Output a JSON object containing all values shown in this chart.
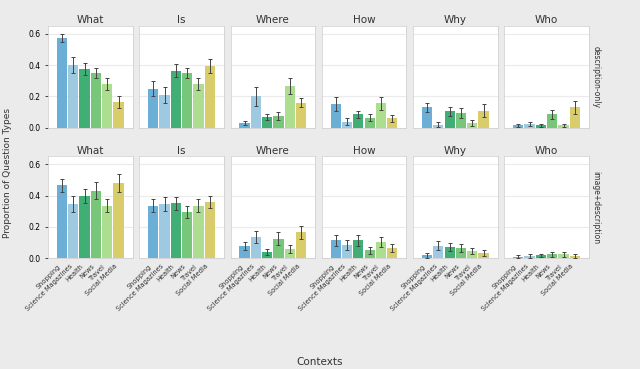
{
  "contexts": [
    "Shopping",
    "Science Magazines",
    "Health",
    "News",
    "Travel",
    "Social Media"
  ],
  "question_types": [
    "What",
    "Is",
    "Where",
    "How",
    "Why",
    "Who"
  ],
  "row_labels": [
    "description-only",
    "image+description"
  ],
  "colors": [
    "#6BAED6",
    "#9ECAE1",
    "#41AE76",
    "#78C679",
    "#ADDD8E",
    "#D9CC6A"
  ],
  "description_only": {
    "What": {
      "values": [
        0.57,
        0.4,
        0.375,
        0.35,
        0.28,
        0.165
      ],
      "errors": [
        0.025,
        0.05,
        0.04,
        0.03,
        0.04,
        0.04
      ]
    },
    "Is": {
      "values": [
        0.25,
        0.21,
        0.365,
        0.35,
        0.28,
        0.395
      ],
      "errors": [
        0.05,
        0.05,
        0.04,
        0.03,
        0.04,
        0.045
      ]
    },
    "Where": {
      "values": [
        0.03,
        0.2,
        0.07,
        0.075,
        0.265,
        0.16
      ],
      "errors": [
        0.015,
        0.06,
        0.02,
        0.025,
        0.05,
        0.03
      ]
    },
    "How": {
      "values": [
        0.15,
        0.04,
        0.085,
        0.065,
        0.155,
        0.06
      ],
      "errors": [
        0.045,
        0.02,
        0.025,
        0.02,
        0.04,
        0.02
      ]
    },
    "Why": {
      "values": [
        0.13,
        0.02,
        0.105,
        0.095,
        0.03,
        0.11
      ],
      "errors": [
        0.03,
        0.015,
        0.03,
        0.03,
        0.02,
        0.04
      ]
    },
    "Who": {
      "values": [
        0.015,
        0.025,
        0.015,
        0.085,
        0.015,
        0.13
      ],
      "errors": [
        0.01,
        0.015,
        0.01,
        0.03,
        0.01,
        0.04
      ]
    }
  },
  "image_description": {
    "What": {
      "values": [
        0.465,
        0.345,
        0.395,
        0.43,
        0.335,
        0.48
      ],
      "errors": [
        0.04,
        0.05,
        0.045,
        0.055,
        0.04,
        0.06
      ]
    },
    "Is": {
      "values": [
        0.335,
        0.345,
        0.35,
        0.295,
        0.335,
        0.36
      ],
      "errors": [
        0.04,
        0.045,
        0.04,
        0.04,
        0.04,
        0.04
      ]
    },
    "Where": {
      "values": [
        0.08,
        0.135,
        0.04,
        0.125,
        0.06,
        0.165
      ],
      "errors": [
        0.025,
        0.04,
        0.02,
        0.04,
        0.025,
        0.04
      ]
    },
    "How": {
      "values": [
        0.115,
        0.085,
        0.115,
        0.05,
        0.105,
        0.065
      ],
      "errors": [
        0.035,
        0.03,
        0.035,
        0.025,
        0.03,
        0.025
      ]
    },
    "Why": {
      "values": [
        0.02,
        0.08,
        0.07,
        0.065,
        0.045,
        0.035
      ],
      "errors": [
        0.015,
        0.03,
        0.025,
        0.025,
        0.02,
        0.02
      ]
    },
    "Who": {
      "values": [
        0.01,
        0.015,
        0.02,
        0.025,
        0.025,
        0.015
      ],
      "errors": [
        0.01,
        0.01,
        0.01,
        0.015,
        0.015,
        0.01
      ]
    }
  },
  "ylim": [
    0,
    0.65
  ],
  "yticks": [
    0.0,
    0.2,
    0.4,
    0.6
  ],
  "bar_width": 0.1,
  "background_color": "#EBEBEB",
  "panel_bg": "#FFFFFF",
  "grid_color": "#EBEBEB",
  "ylabel": "Proportion of Question Types",
  "xlabel": "Contexts",
  "title_fontsize": 7.5,
  "tick_fontsize": 5.5,
  "xtick_fontsize": 4.8
}
